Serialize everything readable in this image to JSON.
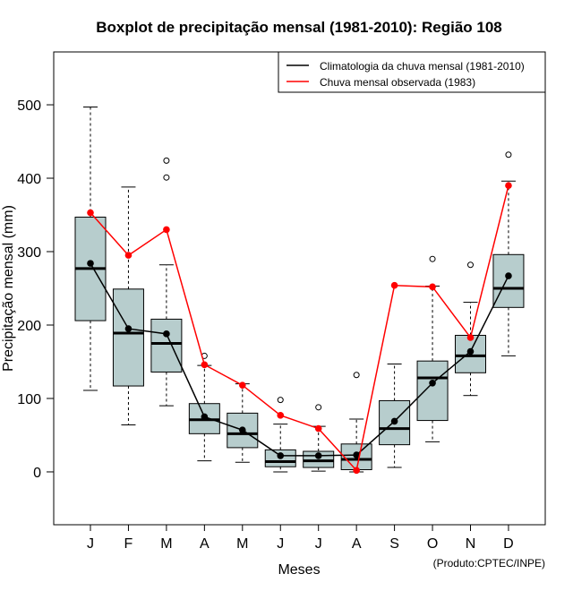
{
  "chart_data": {
    "type": "boxplot",
    "title": "Boxplot de precipitação mensal (1981-2010): Região 108",
    "xlabel": "Meses",
    "ylabel": "Precipitação mensal (mm)",
    "credit": "(Produto:CPTEC/INPE)",
    "ylim": [
      -72,
      572
    ],
    "yticks": [
      0,
      100,
      200,
      300,
      400,
      500
    ],
    "categories": [
      "J",
      "F",
      "M",
      "A",
      "M",
      "J",
      "J",
      "A",
      "S",
      "O",
      "N",
      "D"
    ],
    "boxes": [
      {
        "whisker_low": 111,
        "q1": 206,
        "median": 277,
        "q3": 347,
        "whisker_high": 497,
        "outliers": []
      },
      {
        "whisker_low": 64,
        "q1": 117,
        "median": 189,
        "q3": 249,
        "whisker_high": 388,
        "outliers": []
      },
      {
        "whisker_low": 90,
        "q1": 136,
        "median": 175,
        "q3": 208,
        "whisker_high": 282,
        "outliers": [
          401,
          424
        ]
      },
      {
        "whisker_low": 15,
        "q1": 52,
        "median": 71,
        "q3": 93,
        "whisker_high": 145,
        "outliers": [
          158
        ]
      },
      {
        "whisker_low": 13,
        "q1": 33,
        "median": 52,
        "q3": 80,
        "whisker_high": 120,
        "outliers": []
      },
      {
        "whisker_low": 0,
        "q1": 7,
        "median": 14,
        "q3": 30,
        "whisker_high": 65,
        "outliers": [
          98
        ]
      },
      {
        "whisker_low": 1,
        "q1": 6,
        "median": 15,
        "q3": 28,
        "whisker_high": 62,
        "outliers": [
          88
        ]
      },
      {
        "whisker_low": 0,
        "q1": 3,
        "median": 17,
        "q3": 38,
        "whisker_high": 72,
        "outliers": [
          132
        ]
      },
      {
        "whisker_low": 6,
        "q1": 37,
        "median": 59,
        "q3": 97,
        "whisker_high": 147,
        "outliers": []
      },
      {
        "whisker_low": 41,
        "q1": 70,
        "median": 128,
        "q3": 151,
        "whisker_high": 253,
        "outliers": [
          290
        ]
      },
      {
        "whisker_low": 104,
        "q1": 135,
        "median": 158,
        "q3": 186,
        "whisker_high": 231,
        "outliers": [
          282
        ]
      },
      {
        "whisker_low": 158,
        "q1": 224,
        "median": 250,
        "q3": 296,
        "whisker_high": 396,
        "outliers": [
          432
        ]
      }
    ],
    "series": [
      {
        "name": "Climatologia da chuva mensal (1981-2010)",
        "color": "#000000",
        "values": [
          284,
          195,
          188,
          75,
          57,
          22,
          22,
          23,
          69,
          121,
          164,
          267
        ]
      },
      {
        "name": "Chuva mensal observada (1983)",
        "color": "#ff0000",
        "values": [
          353,
          295,
          330,
          146,
          118,
          77,
          59,
          2,
          254,
          252,
          183,
          390
        ]
      }
    ],
    "legend_position": "top-right",
    "box_fill": "#b7cdcd"
  }
}
